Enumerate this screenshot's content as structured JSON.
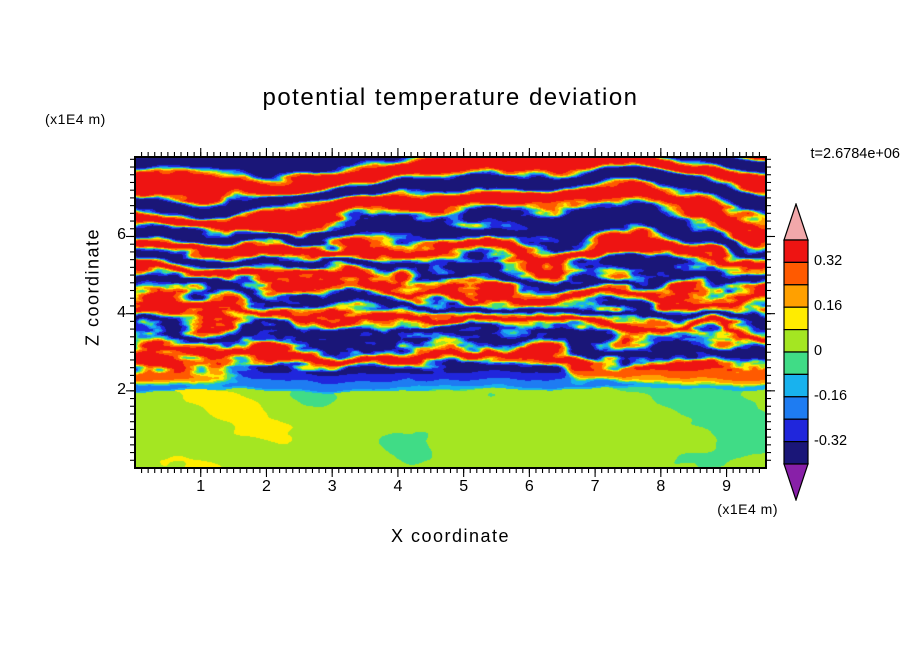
{
  "title": "potential temperature deviation",
  "timestamp": "t=2.6784e+06",
  "axes": {
    "x_label": "X coordinate",
    "x_unit": "(x1E4 m)",
    "y_label": "Z coordinate",
    "y_unit": "(x1E4 m)",
    "x_tick_labels": [
      1,
      2,
      3,
      4,
      5,
      6,
      7,
      8,
      9
    ],
    "y_tick_labels": [
      2,
      4,
      6
    ],
    "x_minor_step": 0.1,
    "y_minor_step": 0.2
  },
  "colorbar": {
    "tick_labels": [
      "0.32",
      "0.16",
      "0",
      "-0.16",
      "-0.32"
    ]
  },
  "chart_data": {
    "type": "heatmap",
    "title": "potential temperature deviation",
    "xlabel": "X coordinate (x1E4 m)",
    "ylabel": "Z coordinate (x1E4 m)",
    "time_annotation": "t=2.6784e+06",
    "x_range": [
      0,
      9.6
    ],
    "z_range": [
      0,
      8.06
    ],
    "contour_levels": [
      -0.4,
      -0.32,
      -0.24,
      -0.16,
      -0.08,
      0,
      0.08,
      0.16,
      0.24,
      0.32,
      0.4
    ],
    "colorbar_labeled_levels": [
      0.32,
      0.16,
      0,
      -0.16,
      -0.32
    ],
    "palette": {
      "colors_low_to_high": [
        "#1a1678",
        "#2026dc",
        "#1e7cf2",
        "#18b2ee",
        "#40dc86",
        "#a4e622",
        "#ffec00",
        "#ffa000",
        "#ff5a00",
        "#ee1412"
      ],
      "under_color": "#8820a8",
      "over_color": "#f2a8aa"
    },
    "structure": {
      "description": "Filled-contour snapshot of potential temperature deviation from a stratified turbulence simulation: above z=2 (x1E4 m) the field is dominated by alternating horizontal bands saturated beyond +0.4 (pink) and below -0.4 (purple), with thin red/orange/yellow and cyan/blue/navy filaments along wavy band edges; turbulence and filamentation are strongest between z=3 and z=5; below z=2 lies a well-mixed convective layer with values near 0, rendered as swirling bright yellow-green (slightly positive) and medium green (slightly negative) patches, capped by a thin cyan/blue inversion line at z=2.",
      "mixed_layer_top_z": 2.0,
      "band_wavelength_z": 1.0
    },
    "render_hints": {
      "ml_base": 2.0,
      "ml_wiggle": 0.3,
      "ml_bias": 0.02,
      "ml_amp": 0.11,
      "lambda": 1.0,
      "amp": 0.36,
      "turb_center": 4.1,
      "turb_width": 2.1
    }
  }
}
